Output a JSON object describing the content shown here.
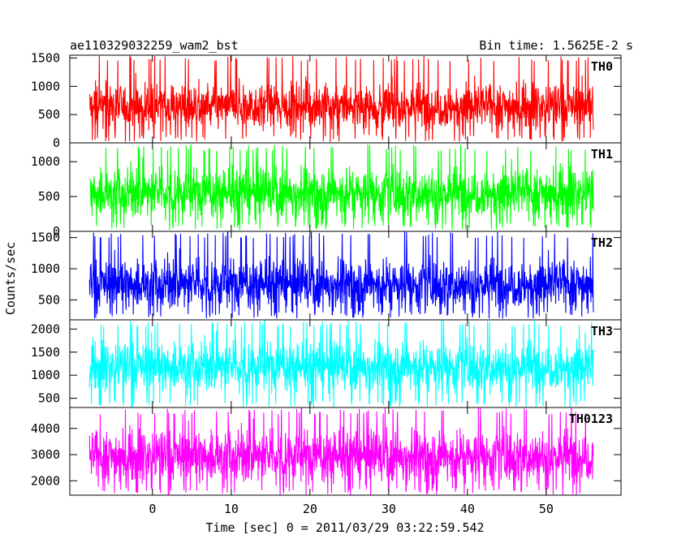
{
  "header": {
    "title": "ae110329032259_wam2_bst",
    "bin_time": "Bin time: 1.5625E-2 s"
  },
  "y_axis_label": "Counts/sec",
  "x_axis_label": "Time [sec] 0 = 2011/03/29 03:22:59.542",
  "chart_data": {
    "type": "line",
    "stacked_panels": true,
    "x_range": [
      -8,
      56
    ],
    "xlim": [
      -10.5,
      59.5
    ],
    "x_ticks": [
      0,
      10,
      20,
      30,
      40,
      50
    ],
    "bin_time_s": 0.015625,
    "panels": [
      {
        "name": "TH0",
        "color": "#ff0000",
        "ylim": [
          0,
          1550
        ],
        "y_ticks": [
          0,
          500,
          1000,
          1500
        ],
        "mean": 650,
        "spread": 360,
        "min": 20,
        "max": 1550
      },
      {
        "name": "TH1",
        "color": "#00ff00",
        "ylim": [
          0,
          1270
        ],
        "y_ticks": [
          0,
          500,
          1000
        ],
        "mean": 560,
        "spread": 320,
        "min": 20,
        "max": 1250
      },
      {
        "name": "TH2",
        "color": "#0000ff",
        "ylim": [
          180,
          1600
        ],
        "y_ticks": [
          500,
          1000,
          1500
        ],
        "mean": 760,
        "spread": 360,
        "min": 200,
        "max": 1600
      },
      {
        "name": "TH3",
        "color": "#00ffff",
        "ylim": [
          300,
          2200
        ],
        "y_ticks": [
          500,
          1000,
          1500,
          2000
        ],
        "mean": 1200,
        "spread": 480,
        "min": 300,
        "max": 2200
      },
      {
        "name": "TH0123",
        "color": "#ff00ff",
        "ylim": [
          1450,
          4800
        ],
        "y_ticks": [
          2000,
          3000,
          4000
        ],
        "mean": 2950,
        "spread": 900,
        "min": 1450,
        "max": 4800
      }
    ]
  }
}
